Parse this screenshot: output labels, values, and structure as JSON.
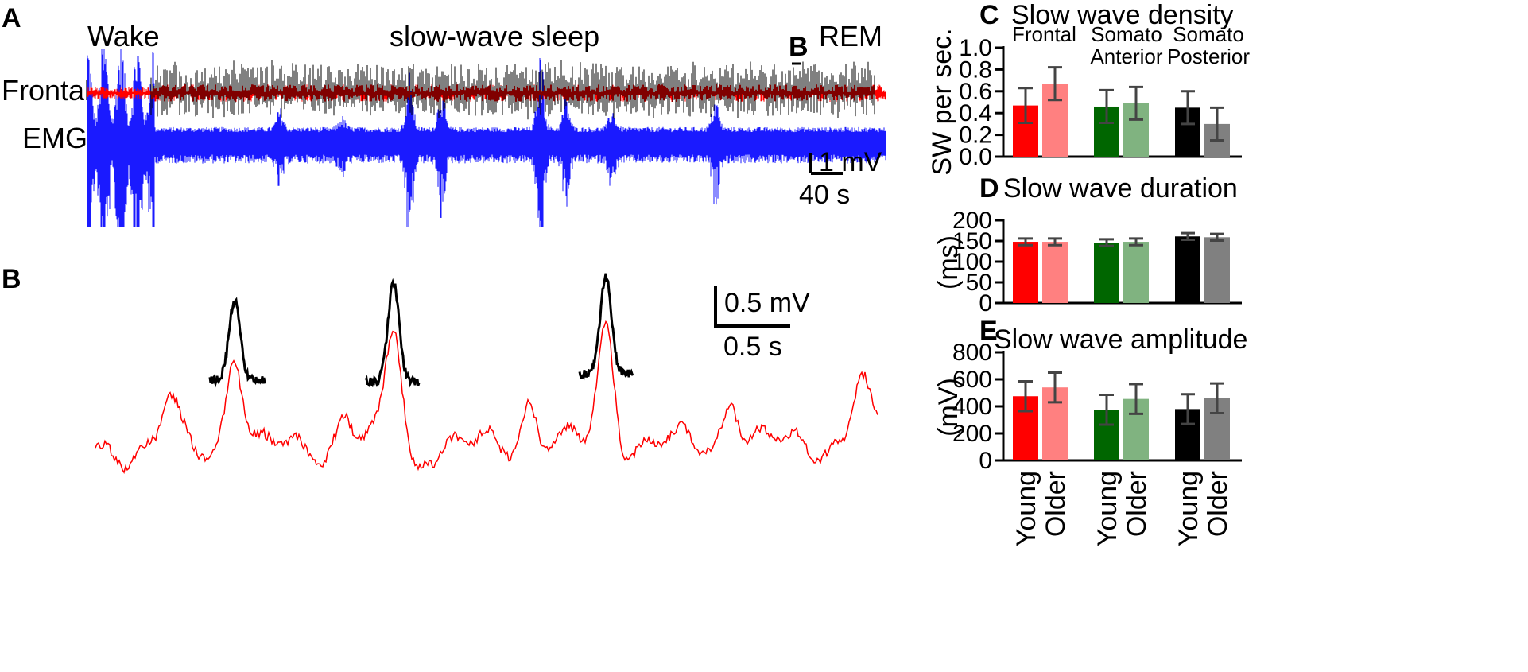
{
  "panels": {
    "A": {
      "letter": "A",
      "state_labels": [
        "Wake",
        "slow-wave sleep",
        "REM"
      ],
      "marker_label": "B",
      "trace_labels": [
        "Frontal",
        "EMG"
      ],
      "scale_voltage": "1 mV",
      "scale_time": "40 s",
      "colors": {
        "frontal": "#ff0000",
        "frontal_sws": "#000000",
        "emg": "#1a1aff"
      }
    },
    "B": {
      "letter": "B",
      "scale_voltage": "0.5 mV",
      "scale_time": "0.5 s",
      "colors": {
        "trace": "#ff0000",
        "detected": "#000000"
      }
    },
    "C": {
      "letter": "C"
    },
    "D": {
      "letter": "D"
    },
    "E": {
      "letter": "E"
    }
  },
  "chart_data": [
    {
      "panel": "C",
      "type": "bar",
      "title": "Slow wave density",
      "ylabel": "SW per sec.",
      "ylim": [
        0,
        1.0
      ],
      "yticks": [
        "0.0",
        "0.2",
        "0.4",
        "0.6",
        "0.8",
        "1.0"
      ],
      "ytick_values": [
        0,
        0.2,
        0.4,
        0.6,
        0.8,
        1.0
      ],
      "groups": [
        "Frontal",
        "Somato\nAnterior",
        "Somato\nPosterior"
      ],
      "categories": [
        "Young",
        "Older"
      ],
      "values": [
        [
          0.47,
          0.67
        ],
        [
          0.46,
          0.49
        ],
        [
          0.45,
          0.3
        ]
      ],
      "errors": [
        [
          0.16,
          0.15
        ],
        [
          0.15,
          0.15
        ],
        [
          0.15,
          0.15
        ]
      ],
      "colors": [
        [
          "#ff0000",
          "#ff8080"
        ],
        [
          "#006600",
          "#80b380"
        ],
        [
          "#000000",
          "#808080"
        ]
      ]
    },
    {
      "panel": "D",
      "type": "bar",
      "title": "Slow wave duration",
      "ylabel": "(ms)",
      "ylim": [
        0,
        200
      ],
      "yticks": [
        "0",
        "50",
        "100",
        "150",
        "200"
      ],
      "ytick_values": [
        0,
        50,
        100,
        150,
        200
      ],
      "categories": [
        "Young",
        "Older"
      ],
      "values": [
        [
          148,
          148
        ],
        [
          146,
          148
        ],
        [
          161,
          159
        ]
      ],
      "errors": [
        [
          8,
          8
        ],
        [
          8,
          8
        ],
        [
          8,
          8
        ]
      ],
      "colors": [
        [
          "#ff0000",
          "#ff8080"
        ],
        [
          "#006600",
          "#80b380"
        ],
        [
          "#000000",
          "#808080"
        ]
      ]
    },
    {
      "panel": "E",
      "type": "bar",
      "title": "Slow wave amplitude",
      "ylabel": "(mV)",
      "ylim": [
        0,
        800
      ],
      "yticks": [
        "0",
        "200",
        "400",
        "600",
        "800"
      ],
      "ytick_values": [
        0,
        200,
        400,
        600,
        800
      ],
      "categories": [
        "Young",
        "Older"
      ],
      "values": [
        [
          475,
          540
        ],
        [
          375,
          455
        ],
        [
          380,
          460
        ]
      ],
      "errors": [
        [
          110,
          110
        ],
        [
          110,
          110
        ],
        [
          110,
          110
        ]
      ],
      "colors": [
        [
          "#ff0000",
          "#ff8080"
        ],
        [
          "#006600",
          "#80b380"
        ],
        [
          "#000000",
          "#808080"
        ]
      ],
      "xlabels": [
        "Young",
        "Older",
        "Young",
        "Older",
        "Young",
        "Older"
      ]
    }
  ]
}
